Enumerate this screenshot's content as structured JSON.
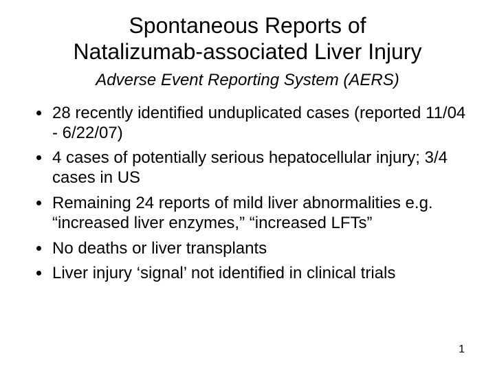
{
  "title_line1": "Spontaneous Reports of",
  "title_line2": "Natalizumab-associated Liver Injury",
  "subtitle": "Adverse Event Reporting System (AERS)",
  "bullets": [
    "28 recently identified unduplicated cases (reported 11/04 - 6/22/07)",
    "4 cases of potentially serious hepatocellular injury; 3/4 cases in US",
    "Remaining 24 reports of mild liver abnormalities e.g. “increased liver enzymes,” “increased LFTs”",
    "No deaths or liver transplants",
    "Liver injury ‘signal’ not identified in clinical trials"
  ],
  "page_number": "1",
  "colors": {
    "background": "#ffffff",
    "text": "#000000"
  },
  "fonts": {
    "title_size": 32,
    "subtitle_size": 24,
    "body_size": 24,
    "page_num_size": 16
  }
}
